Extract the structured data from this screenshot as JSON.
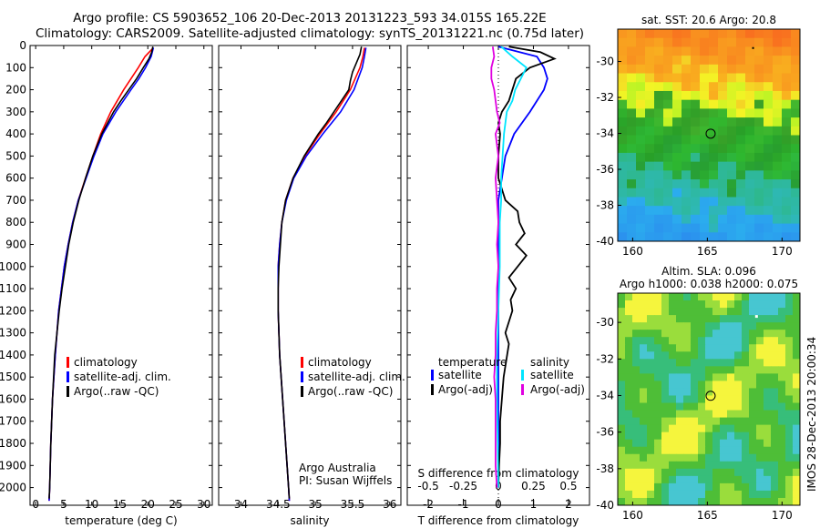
{
  "title_line1": "Argo profile: CS 5903652_106 20-Dec-2013 20131223_593 34.015S 165.22E",
  "title_line2": "Climatology: CARS2009. Satellite-adjusted climatology: synTS_20131221.nc (0.75d later)",
  "footer_stamp": "IMOS 28-Dec-2013 20:00:34",
  "colors": {
    "climatology": "#ff0000",
    "satellite": "#0000ff",
    "argo": "#000000",
    "sat_sal": "#00e5ff",
    "argo_sal": "#e000e0"
  },
  "chart_data": [
    {
      "type": "line",
      "id": "temperature",
      "xlabel": "temperature (deg C)",
      "ylabel": "",
      "xlim": [
        -1,
        31.5
      ],
      "ylim": [
        0,
        2080
      ],
      "xticks": [
        0,
        5,
        10,
        15,
        20,
        25,
        30
      ],
      "yticks": [
        0,
        100,
        200,
        300,
        400,
        500,
        600,
        700,
        800,
        900,
        1000,
        1100,
        1200,
        1300,
        1400,
        1500,
        1600,
        1700,
        1800,
        1900,
        2000
      ],
      "legend": [
        "climatology",
        "satellite-adj. clim.",
        "Argo(..raw -QC)"
      ],
      "series": [
        {
          "name": "climatology",
          "depth": [
            10,
            50,
            100,
            150,
            200,
            300,
            400,
            500,
            600,
            700,
            800,
            900,
            1000,
            1200,
            1400,
            1600,
            1800,
            2000,
            2060
          ],
          "values": [
            21.0,
            19.5,
            18.3,
            17.0,
            15.7,
            13.4,
            11.6,
            10.2,
            8.9,
            7.6,
            6.6,
            5.8,
            5.1,
            4.1,
            3.5,
            3.0,
            2.7,
            2.5,
            2.4
          ]
        },
        {
          "name": "satellite-adj. clim.",
          "depth": [
            10,
            50,
            100,
            150,
            200,
            300,
            400,
            500,
            600,
            700,
            800,
            900,
            1000,
            1200,
            1400,
            1600,
            1800,
            2000,
            2060
          ],
          "values": [
            21.0,
            20.6,
            19.6,
            18.4,
            17.0,
            14.3,
            12.0,
            10.4,
            9.0,
            7.6,
            6.6,
            5.8,
            5.1,
            4.1,
            3.5,
            3.0,
            2.7,
            2.5,
            2.4
          ]
        },
        {
          "name": "Argo(..raw -QC)",
          "depth": [
            5,
            30,
            60,
            100,
            150,
            200,
            250,
            300,
            400,
            500,
            600,
            700,
            800,
            900,
            1000,
            1100,
            1200,
            1300,
            1400,
            1600,
            1800,
            2000,
            2050
          ],
          "values": [
            20.9,
            20.7,
            20.2,
            19.2,
            18.0,
            16.6,
            15.2,
            13.9,
            11.8,
            10.2,
            8.9,
            7.7,
            6.7,
            5.9,
            5.3,
            4.7,
            4.2,
            3.8,
            3.4,
            3.0,
            2.7,
            2.5,
            2.4
          ]
        }
      ]
    },
    {
      "type": "line",
      "id": "salinity",
      "xlabel": "salinity",
      "ylabel": "",
      "xlim": [
        33.7,
        36.15
      ],
      "ylim": [
        0,
        2080
      ],
      "xticks": [
        34,
        34.5,
        35,
        35.5,
        36
      ],
      "xticklabels": [
        "34",
        "34.5",
        "35",
        "35.5",
        "36"
      ],
      "legend": [
        "climatology",
        "satellite-adj. clim.",
        "Argo(..raw -QC)"
      ],
      "annotations": [
        "Argo Australia",
        "PI: Susan Wijffels"
      ],
      "series": [
        {
          "name": "climatology",
          "depth": [
            10,
            50,
            100,
            200,
            300,
            400,
            500,
            600,
            700,
            800,
            900,
            1000,
            1200,
            1400,
            1600,
            1800,
            2000,
            2060
          ],
          "values": [
            35.66,
            35.64,
            35.6,
            35.47,
            35.28,
            35.06,
            34.86,
            34.7,
            34.6,
            34.55,
            34.52,
            34.5,
            34.5,
            34.52,
            34.56,
            34.6,
            34.64,
            34.65
          ]
        },
        {
          "name": "satellite-adj. clim.",
          "depth": [
            10,
            50,
            100,
            200,
            300,
            400,
            500,
            600,
            700,
            800,
            900,
            1000,
            1200,
            1400,
            1600,
            1800,
            2000,
            2060
          ],
          "values": [
            35.68,
            35.66,
            35.63,
            35.52,
            35.34,
            35.1,
            34.88,
            34.71,
            34.61,
            34.55,
            34.52,
            34.5,
            34.5,
            34.52,
            34.56,
            34.6,
            34.64,
            34.65
          ]
        },
        {
          "name": "Argo(..raw -QC)",
          "depth": [
            5,
            40,
            80,
            120,
            160,
            200,
            250,
            300,
            350,
            400,
            500,
            600,
            700,
            800,
            900,
            1000,
            1100,
            1200,
            1300,
            1400,
            1500,
            1600,
            1800,
            2000,
            2050
          ],
          "values": [
            35.62,
            35.6,
            35.55,
            35.5,
            35.47,
            35.45,
            35.35,
            35.25,
            35.15,
            35.04,
            34.85,
            34.7,
            34.6,
            34.55,
            34.53,
            34.51,
            34.5,
            34.5,
            34.51,
            34.52,
            34.54,
            34.56,
            34.6,
            34.64,
            34.65
          ]
        }
      ]
    },
    {
      "type": "line",
      "id": "difference",
      "xlabel": "T difference from climatology",
      "xlabel_top": "S difference from climatology",
      "xlim": [
        -2.6,
        2.6
      ],
      "ylim": [
        0,
        2080
      ],
      "xticks": [
        -2,
        -1,
        0,
        1,
        2
      ],
      "xticklabels": [
        "-2",
        "-1",
        "0",
        "1",
        "2"
      ],
      "sticks": [
        -0.5,
        -0.25,
        0,
        0.25,
        0.5
      ],
      "sticklabels": [
        "-0.5",
        "-0.25",
        "0",
        "0.25",
        "0.5"
      ],
      "legend_temperature_header": "temperature",
      "legend_salinity_header": "salinity",
      "legend_temperature": [
        "satellite",
        "Argo(-adj)"
      ],
      "legend_salinity": [
        "satellite",
        "Argo(-adj)"
      ],
      "series": [
        {
          "name": "temperature satellite",
          "depth": [
            5,
            50,
            100,
            150,
            200,
            300,
            400,
            500,
            600,
            700,
            800,
            900,
            1000,
            1200,
            1400,
            1600,
            1800,
            2000
          ],
          "values": [
            0.0,
            1.1,
            1.3,
            1.4,
            1.3,
            0.9,
            0.45,
            0.2,
            0.1,
            0.0,
            0.0,
            0.0,
            0.0,
            0.0,
            0.0,
            0.0,
            0.0,
            0.0
          ]
        },
        {
          "name": "temperature Argo(-adj)",
          "depth": [
            5,
            30,
            60,
            100,
            150,
            200,
            250,
            300,
            350,
            400,
            500,
            600,
            700,
            750,
            800,
            850,
            900,
            950,
            1000,
            1050,
            1100,
            1150,
            1200,
            1250,
            1300,
            1350,
            1400,
            1500,
            1600,
            1700,
            1800,
            1900,
            2000
          ],
          "values": [
            0.3,
            1.2,
            1.6,
            0.9,
            0.5,
            0.4,
            0.3,
            0.1,
            0.0,
            0.05,
            0.0,
            0.0,
            0.2,
            0.55,
            0.6,
            0.75,
            0.5,
            0.8,
            0.55,
            0.3,
            0.5,
            0.35,
            0.4,
            0.3,
            0.2,
            0.3,
            0.25,
            0.15,
            0.1,
            0.05,
            0.05,
            0.02,
            0.0
          ]
        },
        {
          "name": "salinity satellite",
          "depth": [
            5,
            50,
            100,
            150,
            200,
            250,
            300,
            400,
            500,
            600,
            700,
            800,
            900,
            1000,
            1200,
            1400,
            1600,
            2000
          ],
          "values": [
            0.02,
            0.1,
            0.2,
            0.16,
            0.12,
            0.1,
            0.06,
            0.04,
            0.03,
            0.02,
            0.02,
            0.01,
            0.01,
            0.01,
            0.0,
            -0.01,
            -0.01,
            0.0
          ]
        },
        {
          "name": "salinity Argo(-adj)",
          "depth": [
            5,
            50,
            100,
            150,
            200,
            250,
            300,
            350,
            400,
            500,
            600,
            700,
            800,
            900,
            1000,
            1100,
            1200,
            1300,
            1400,
            1500,
            1600,
            1700,
            1800,
            1900,
            2000
          ],
          "values": [
            -0.04,
            -0.03,
            -0.05,
            -0.05,
            -0.03,
            -0.02,
            -0.01,
            0.01,
            -0.02,
            0.0,
            -0.02,
            -0.01,
            0.0,
            -0.01,
            0.0,
            -0.01,
            -0.01,
            -0.02,
            -0.02,
            -0.03,
            -0.02,
            -0.02,
            -0.02,
            -0.02,
            -0.01
          ]
        }
      ]
    },
    {
      "type": "heatmap",
      "id": "sst",
      "title": "sat. SST: 20.6  Argo: 20.8",
      "xlim": [
        159,
        171.2
      ],
      "ylim": [
        -40,
        -28.2
      ],
      "xticks": [
        160,
        165,
        170
      ],
      "yticks": [
        -30,
        -32,
        -34,
        -36,
        -38,
        -40
      ],
      "marker": {
        "lon": 165.22,
        "lat": -34.015
      }
    },
    {
      "type": "heatmap",
      "id": "sla",
      "title": "Altim. SLA: 0.096",
      "subtitle": "Argo h1000: 0.038 h2000: 0.075",
      "xlim": [
        159,
        171.2
      ],
      "ylim": [
        -40,
        -28.4
      ],
      "xticks": [
        160,
        165,
        170
      ],
      "yticks": [
        -30,
        -32,
        -34,
        -36,
        -38,
        -40
      ],
      "marker": {
        "lon": 165.22,
        "lat": -34.015
      }
    }
  ]
}
